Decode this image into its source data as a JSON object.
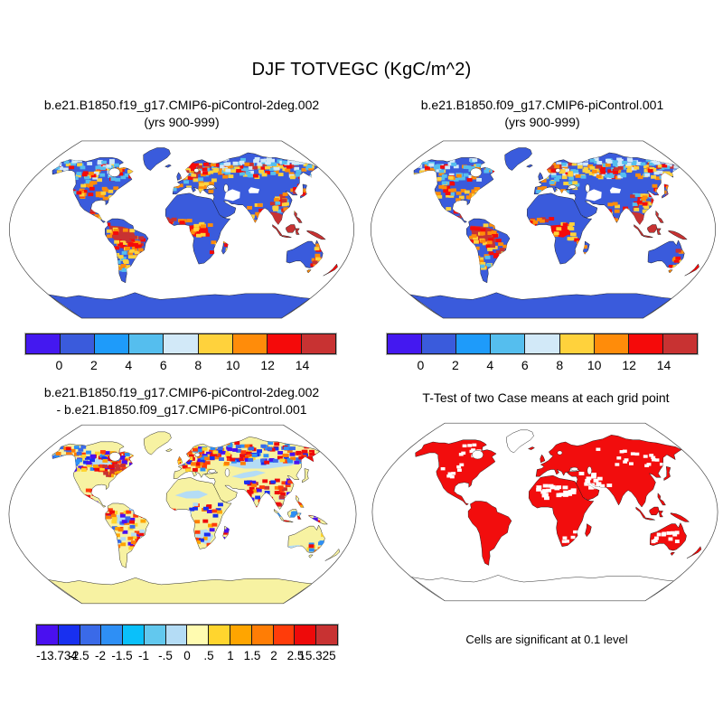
{
  "title": "DJF TOTVEGC (KgC/m^2)",
  "panels": {
    "case1": {
      "title_line1": "b.e21.B1850.f19_g17.CMIP6-piControl-2deg.002",
      "title_line2": "(yrs 900-999)"
    },
    "case2": {
      "title_line1": "b.e21.B1850.f09_g17.CMIP6-piControl.001",
      "title_line2": "(yrs 900-999)"
    },
    "diff": {
      "title_line1": "b.e21.B1850.f19_g17.CMIP6-piControl-2deg.002",
      "title_line2": "- b.e21.B1850.f09_g17.CMIP6-piControl.001"
    },
    "ttest": {
      "title": "T-Test of two Case means at each grid point",
      "caption": "Cells are significant at 0.1 level"
    }
  },
  "chart_data": [
    {
      "type": "map",
      "panel": "top_left",
      "title": "b.e21.B1850.f19_g17.CMIP6-piControl-2deg.002",
      "subtitle": "(yrs 900-999)",
      "variable": "TOTVEGC",
      "season": "DJF",
      "units": "KgC/m^2",
      "projection": "robinson",
      "ocean_color": "#FFFFFF",
      "land_base_color": "#3A5BDC",
      "coastline_color": "#111111",
      "colorbar": {
        "tick_labels": [
          "0",
          "2",
          "4",
          "6",
          "8",
          "10",
          "12",
          "14"
        ],
        "colors": [
          "#4418F0",
          "#3A5BDC",
          "#1E9BFA",
          "#55BEEE",
          "#D2E9F8",
          "#FFD23C",
          "#FF8C0A",
          "#F50A0A",
          "#C83232"
        ],
        "alignment": "interior_edges"
      },
      "description": "Total vegetation carbon, 2-degree control run: high values 8 to >14 KgC/m^2 (red) over Amazon, Congo basin and maritime Southeast Asia; mixed 2-14 along the boreal forest belt and east Asia; low <2 (blue) over most other land; deserts near zero; oceans masked white."
    },
    {
      "type": "map",
      "panel": "top_right",
      "title": "b.e21.B1850.f09_g17.CMIP6-piControl.001",
      "subtitle": "(yrs 900-999)",
      "variable": "TOTVEGC",
      "season": "DJF",
      "units": "KgC/m^2",
      "projection": "robinson",
      "ocean_color": "#FFFFFF",
      "land_base_color": "#3A5BDC",
      "coastline_color": "#111111",
      "colorbar": {
        "tick_labels": [
          "0",
          "2",
          "4",
          "6",
          "8",
          "10",
          "12",
          "14"
        ],
        "colors": [
          "#4418F0",
          "#3A5BDC",
          "#1E9BFA",
          "#55BEEE",
          "#D2E9F8",
          "#FFD23C",
          "#FF8C0A",
          "#F50A0A",
          "#C83232"
        ],
        "alignment": "interior_edges"
      },
      "description": "Total vegetation carbon, 1-degree control run: same pattern as 2-degree case at finer resolution; tropical rainforest maxima (red), boreal mixed band, low blue elsewhere."
    },
    {
      "type": "map",
      "panel": "bottom_left",
      "title": "b.e21.B1850.f19_g17.CMIP6-piControl-2deg.002 - b.e21.B1850.f09_g17.CMIP6-piControl.001",
      "projection": "robinson",
      "ocean_color": "#FFFFFF",
      "land_base_color": "#F7F2A2",
      "coastline_color": "#111111",
      "min": -13.734,
      "max": 15.325,
      "colorbar": {
        "tick_labels": [
          "-13.734",
          "-2.5",
          "-2",
          "-1.5",
          "-1",
          "-.5",
          "0",
          ".5",
          "1",
          "1.5",
          "2",
          "2.5",
          "15.325"
        ],
        "colors": [
          "#4A10F0",
          "#1830F0",
          "#3A6AE8",
          "#2E8FF5",
          "#0AC0FA",
          "#62C8EE",
          "#B4DCF5",
          "#FFFBB0",
          "#FFD52E",
          "#FFA500",
          "#FF7D05",
          "#FF3C0A",
          "#EE0A0A",
          "#C83232"
        ],
        "alignment": "interior_edges"
      },
      "description": "Case difference (2deg minus 1deg): near zero (pale yellow) over most land and Antarctica; small negative (light blue) patches over Siberia, Canada, interior Amazon and southern Africa; noisy +/-0.5 to 2.5 differences (orange, red, dark blue) along the boreal belt, eastern North America, tropics, India, Southeast Asia and east Australia; extremes -13.734 to 15.325."
    },
    {
      "type": "map",
      "panel": "bottom_right",
      "title": "T-Test of two Case means at each grid point",
      "projection": "robinson",
      "ocean_color": "#FFFFFF",
      "significant_color": "#F20D0D",
      "not_significant_color": "#FFFFFF",
      "coastline_color": "#111111",
      "caption": "Cells are significant at 0.1 level",
      "description": "T-test of the two case means: nearly all vegetated land grid cells are significant at the 0.1 level (solid red); scattered insignificant cells (white) in the Sahara, Arabia, central Asia, Australian interior and high Arctic; Greenland and Antarctica shown as outlines only."
    }
  ]
}
